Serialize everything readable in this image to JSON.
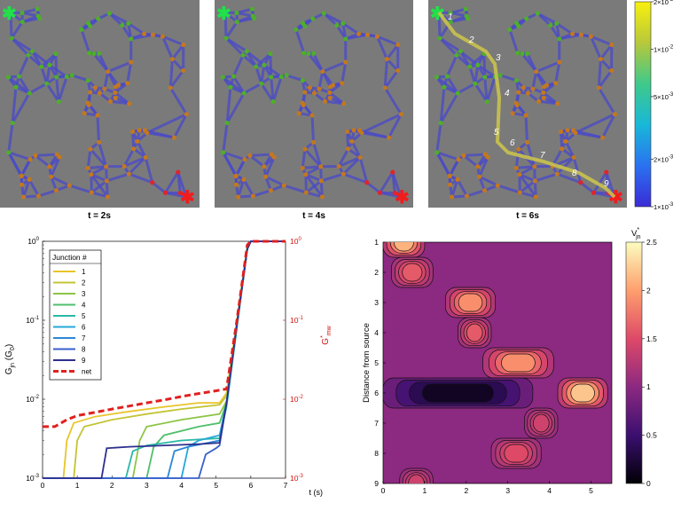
{
  "colors": {
    "panel_bg": "#7a7a7a",
    "edge": "#4a49c9",
    "node_green": "#4fae2a",
    "node_orange": "#c2781f",
    "node_red": "#e0242a",
    "source_star": "#22e04a",
    "drain_star": "#f01d1d",
    "path": "#c9c24e",
    "net": "#e0201f",
    "right_axis": "#d01515"
  },
  "top": {
    "panels": [
      {
        "label": "t = 2s"
      },
      {
        "label": "t = 4s"
      },
      {
        "label": "t = 6s"
      }
    ],
    "path_labels": [
      "1",
      "2",
      "3",
      "4",
      "5",
      "6",
      "7",
      "8",
      "9"
    ],
    "colorbar": {
      "scale": "log",
      "range": [
        0.001,
        0.02
      ],
      "ticks": [
        {
          "base": "2",
          "exp": "-2",
          "value": 0.02
        },
        {
          "base": "1",
          "exp": "-2",
          "value": 0.01
        },
        {
          "base": "5",
          "exp": "-3",
          "value": 0.005
        },
        {
          "base": "2",
          "exp": "-3",
          "value": 0.002
        },
        {
          "base": "1",
          "exp": "-3",
          "value": 0.001
        }
      ]
    }
  },
  "chart_data": [
    {
      "type": "line",
      "xlabel": "t (s)",
      "ylabel": "G",
      "ylabel_sub": "jn",
      "ylabel_unit": "(G",
      "ylabel_unit_sub": "0",
      "ylabel_unit_close": ")",
      "right_ylabel": "G",
      "right_ylabel_sup": "*",
      "right_ylabel_sub": "mw",
      "xlim": [
        0,
        7
      ],
      "ylim": [
        0.001,
        1
      ],
      "yscale": "log",
      "xticks": [
        "0",
        "1",
        "2",
        "3",
        "4",
        "5",
        "6",
        "7"
      ],
      "yticks": [
        {
          "base": "10",
          "exp": "0",
          "value": 1
        },
        {
          "base": "10",
          "exp": "-1",
          "value": 0.1
        },
        {
          "base": "10",
          "exp": "-2",
          "value": 0.01
        },
        {
          "base": "10",
          "exp": "-3",
          "value": 0.001
        }
      ],
      "legend": {
        "title": "Junction #",
        "placement": "top-left"
      },
      "series": [
        {
          "name": "1",
          "color": "#e8c52a",
          "x": [
            0,
            0.6,
            0.7,
            0.9,
            1.5,
            2.5,
            3.5,
            4.5,
            5.1,
            5.3,
            5.6,
            5.9,
            6.0,
            7
          ],
          "y": [
            0.001,
            0.001,
            0.003,
            0.005,
            0.006,
            0.007,
            0.008,
            0.009,
            0.009,
            0.012,
            0.1,
            0.9,
            1.0,
            1.0
          ]
        },
        {
          "name": "2",
          "color": "#c3c434",
          "x": [
            0,
            0.9,
            1.0,
            1.2,
            2.0,
            3.0,
            4.0,
            5.1,
            5.3,
            5.6,
            5.9,
            6.0,
            7
          ],
          "y": [
            0.001,
            0.001,
            0.003,
            0.0045,
            0.0055,
            0.0065,
            0.0075,
            0.0085,
            0.011,
            0.09,
            0.85,
            1.0,
            1.0
          ]
        },
        {
          "name": "3",
          "color": "#8dc446",
          "x": [
            0,
            2.6,
            2.8,
            3.0,
            4.0,
            5.1,
            5.3,
            5.6,
            5.9,
            6.0,
            7
          ],
          "y": [
            0.001,
            0.001,
            0.003,
            0.0045,
            0.0055,
            0.0065,
            0.0095,
            0.09,
            0.8,
            1.0,
            1.0
          ]
        },
        {
          "name": "4",
          "color": "#4fbf6b",
          "x": [
            0,
            3.0,
            3.2,
            3.5,
            4.5,
            5.1,
            5.3,
            5.6,
            5.9,
            6.0,
            7
          ],
          "y": [
            0.001,
            0.001,
            0.0025,
            0.0035,
            0.0045,
            0.005,
            0.009,
            0.09,
            0.8,
            1.0,
            1.0
          ]
        },
        {
          "name": "5",
          "color": "#2ab8a6",
          "x": [
            0,
            2.4,
            2.6,
            3.0,
            4.0,
            5.1,
            5.3,
            5.6,
            5.9,
            6.0,
            7
          ],
          "y": [
            0.001,
            0.001,
            0.0022,
            0.0026,
            0.003,
            0.0032,
            0.008,
            0.08,
            0.8,
            1.0,
            1.0
          ]
        },
        {
          "name": "6",
          "color": "#26a8d8",
          "x": [
            0,
            4.0,
            4.2,
            4.5,
            5.1,
            5.3,
            5.6,
            5.9,
            6.0,
            7
          ],
          "y": [
            0.001,
            0.001,
            0.0025,
            0.003,
            0.0035,
            0.009,
            0.09,
            0.8,
            1.0,
            1.0
          ]
        },
        {
          "name": "7",
          "color": "#2c86d6",
          "x": [
            0,
            3.6,
            3.8,
            4.2,
            5.1,
            5.3,
            5.6,
            5.9,
            6.0,
            7
          ],
          "y": [
            0.001,
            0.001,
            0.0022,
            0.0025,
            0.003,
            0.009,
            0.09,
            0.8,
            1.0,
            1.0
          ]
        },
        {
          "name": "8",
          "color": "#3a5fcc",
          "x": [
            0,
            4.5,
            4.7,
            5.0,
            5.1,
            5.3,
            5.6,
            5.9,
            6.0,
            7
          ],
          "y": [
            0.001,
            0.001,
            0.002,
            0.0024,
            0.0026,
            0.009,
            0.09,
            0.8,
            1.0,
            1.0
          ]
        },
        {
          "name": "9",
          "color": "#2d2f8e",
          "x": [
            0,
            1.7,
            1.85,
            2.5,
            3.5,
            4.5,
            5.1,
            5.3,
            5.6,
            5.9,
            6.0,
            7
          ],
          "y": [
            0.001,
            0.001,
            0.0024,
            0.0025,
            0.0026,
            0.0027,
            0.0028,
            0.009,
            0.09,
            0.8,
            1.0,
            1.0
          ]
        },
        {
          "name": "net",
          "color": "#e0201f",
          "dashed": true,
          "x": [
            0,
            0.35,
            0.7,
            1.0,
            1.5,
            2.0,
            2.5,
            3.0,
            3.5,
            4.0,
            4.5,
            5.0,
            5.3,
            5.6,
            5.9,
            6.0,
            7
          ],
          "y": [
            0.0045,
            0.0045,
            0.0055,
            0.0062,
            0.0068,
            0.0075,
            0.0082,
            0.009,
            0.0098,
            0.0108,
            0.0118,
            0.0128,
            0.0135,
            0.1,
            0.9,
            1.0,
            1.0
          ]
        }
      ]
    },
    {
      "type": "heatmap",
      "ylabel": "Distance from source",
      "xlim": [
        0,
        5.5
      ],
      "ylim": [
        1,
        9
      ],
      "xticks": [
        "0",
        "1",
        "2",
        "3",
        "4",
        "5"
      ],
      "yticks": [
        "1",
        "2",
        "3",
        "4",
        "5",
        "6",
        "7",
        "8",
        "9"
      ],
      "colorbar": {
        "label": "V",
        "label_sub": "jn",
        "label_sup": "*",
        "range": [
          0,
          2.5
        ],
        "ticks": [
          "0",
          "0.5",
          "1",
          "1.5",
          "2",
          "2.5"
        ]
      },
      "background_value": 1.0,
      "features": [
        {
          "distance": 1,
          "t_start": 0,
          "t_end": 1.0,
          "value": 2.1
        },
        {
          "distance": 2,
          "t_start": 0.2,
          "t_end": 1.2,
          "value": 1.6
        },
        {
          "distance": 3,
          "t_start": 1.5,
          "t_end": 2.7,
          "value": 1.9
        },
        {
          "distance": 4,
          "t_start": 1.8,
          "t_end": 2.6,
          "value": 1.6
        },
        {
          "distance": 5,
          "t_start": 2.4,
          "t_end": 4.1,
          "value": 1.9
        },
        {
          "distance": 6,
          "t_start": 0,
          "t_end": 3.6,
          "value": 0.15
        },
        {
          "distance": 6,
          "t_start": 4.2,
          "t_end": 5.4,
          "value": 2.2
        },
        {
          "distance": 7,
          "t_start": 3.4,
          "t_end": 4.2,
          "value": 1.4
        },
        {
          "distance": 8,
          "t_start": 2.6,
          "t_end": 3.8,
          "value": 1.5
        },
        {
          "distance": 9,
          "t_start": 0.4,
          "t_end": 1.2,
          "value": 1.4
        }
      ]
    }
  ]
}
